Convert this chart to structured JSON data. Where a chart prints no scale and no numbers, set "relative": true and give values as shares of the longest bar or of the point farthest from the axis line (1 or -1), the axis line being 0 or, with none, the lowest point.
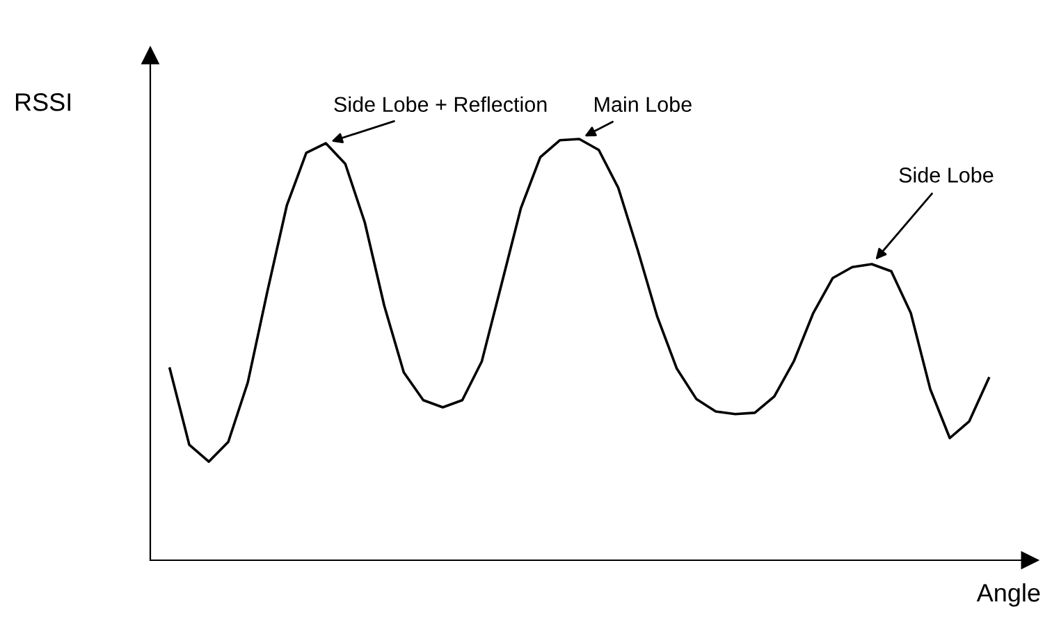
{
  "chart_data": {
    "type": "line",
    "relative": true,
    "xlabel": "Angle",
    "ylabel": "RSSI",
    "color": "#000000",
    "grid": false,
    "legend": false,
    "marker": "none",
    "line_style": "solid",
    "categories": [
      null,
      null,
      null,
      null,
      null,
      null,
      null,
      null,
      null,
      null,
      null,
      null,
      null,
      null,
      null,
      null,
      null,
      null,
      null,
      null,
      null,
      null,
      null,
      null,
      null,
      null,
      null,
      null,
      null,
      null,
      null,
      null,
      null,
      null,
      null,
      null,
      null,
      null,
      null,
      null,
      null,
      null,
      null
    ],
    "values": [
      0.455,
      0.274,
      0.234,
      0.281,
      0.422,
      0.637,
      0.842,
      0.967,
      0.99,
      0.941,
      0.802,
      0.604,
      0.446,
      0.38,
      0.363,
      0.38,
      0.472,
      0.653,
      0.835,
      0.957,
      0.997,
      1,
      0.974,
      0.884,
      0.736,
      0.578,
      0.455,
      0.383,
      0.353,
      0.347,
      0.35,
      0.389,
      0.472,
      0.587,
      0.67,
      0.696,
      0.703,
      0.686,
      0.587,
      0.406,
      0.29,
      0.33,
      0.432
    ],
    "annotations": [
      "Side Lobe + Reflection",
      "Main Lobe",
      "Side Lobe"
    ]
  }
}
